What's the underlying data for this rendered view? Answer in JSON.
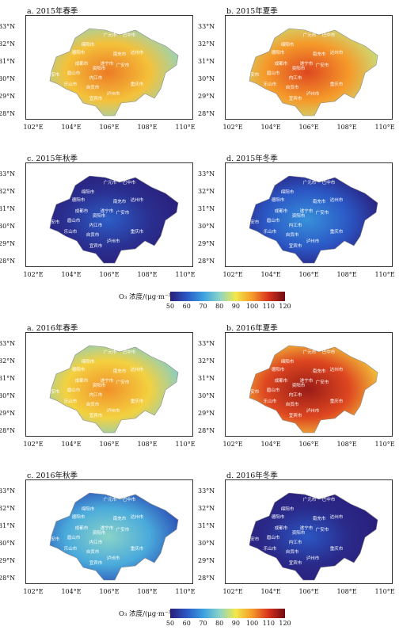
{
  "x_ticks": [
    "102°E",
    "104°E",
    "106°E",
    "108°E",
    "110°E"
  ],
  "y_ticks": [
    "33°N",
    "32°N",
    "31°N",
    "30°N",
    "29°N",
    "28°N"
  ],
  "cities": [
    "广元市",
    "巴中市",
    "绵阳市",
    "德阳市",
    "南充市",
    "达州市",
    "成都市",
    "遂宁市",
    "广安市",
    "眉山市",
    "资阳市",
    "雅安市",
    "内江市",
    "乐山市",
    "自贡市",
    "重庆市",
    "宜宾市",
    "泸州市"
  ],
  "legend": {
    "label": "O₃ 浓度/(μg·m⁻³)",
    "ticks": [
      "50",
      "60",
      "70",
      "80",
      "90",
      "100",
      "110",
      "120"
    ],
    "range": [
      50,
      120
    ],
    "colors": [
      "#2a1e7a",
      "#2b57c4",
      "#3aa0e0",
      "#8ad3c8",
      "#f2e84a",
      "#f59a2a",
      "#d8321e",
      "#6e0b12"
    ]
  },
  "panels": [
    {
      "title": "a. 2015年春季",
      "level": 95
    },
    {
      "title": "b. 2015年夏季",
      "level": 100
    },
    {
      "title": "c. 2015年秋季",
      "level": 53
    },
    {
      "title": "d. 2015年冬季",
      "level": 60
    },
    {
      "title": "a. 2016年春季",
      "level": 93
    },
    {
      "title": "b. 2016年夏季",
      "level": 108
    },
    {
      "title": "c. 2016年秋季",
      "level": 72
    },
    {
      "title": "d. 2016年冬季",
      "level": 52
    }
  ]
}
